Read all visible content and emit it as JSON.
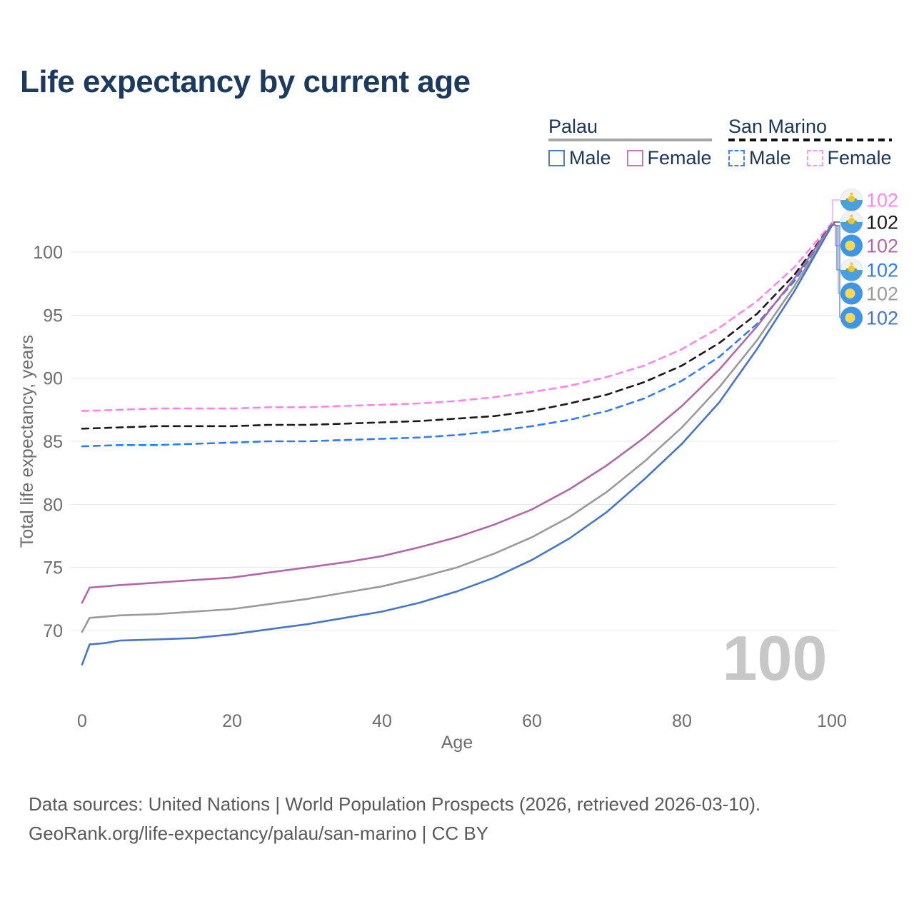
{
  "title": "Life expectancy by current age",
  "legend": {
    "groups": [
      {
        "name": "Palau",
        "line_style": "solid",
        "underline_color": "#a6a6a6",
        "items": [
          {
            "label": "Male",
            "color": "#4a7cc7",
            "dashed": false
          },
          {
            "label": "Female",
            "color": "#bd7cb5",
            "dashed": false
          }
        ]
      },
      {
        "name": "San Marino",
        "line_style": "dashed",
        "underline_color": "#111111",
        "items": [
          {
            "label": "Male",
            "color": "#3b82f6",
            "dashed": true
          },
          {
            "label": "Female",
            "color": "#fc9bec",
            "dashed": true
          }
        ]
      }
    ]
  },
  "chart_data": {
    "type": "line",
    "title": "Life expectancy by current age",
    "xlabel": "Age",
    "ylabel": "Total life expectancy, years",
    "xlim": [
      0,
      100
    ],
    "ylim": [
      70,
      100
    ],
    "x_ticks": [
      0,
      20,
      40,
      60,
      80,
      100
    ],
    "y_ticks": [
      70,
      75,
      80,
      85,
      90,
      95,
      100
    ],
    "grid": true,
    "age_indicator": "100",
    "series": [
      {
        "name": "San Marino Female",
        "country": "San Marino",
        "sex": "Female",
        "color": "#ff85e8",
        "dash": true,
        "x": [
          0,
          5,
          10,
          15,
          20,
          25,
          30,
          35,
          40,
          45,
          50,
          55,
          60,
          65,
          70,
          75,
          80,
          85,
          90,
          95,
          100
        ],
        "y": [
          87.4,
          87.5,
          87.6,
          87.6,
          87.6,
          87.7,
          87.7,
          87.8,
          87.9,
          88.0,
          88.2,
          88.5,
          88.9,
          89.4,
          90.1,
          91.0,
          92.3,
          94.0,
          96.1,
          98.8,
          102.3
        ]
      },
      {
        "name": "San Marino",
        "country": "San Marino",
        "sex": "Both",
        "color": "#1a1a1a",
        "dash": true,
        "x": [
          0,
          5,
          10,
          15,
          20,
          25,
          30,
          35,
          40,
          45,
          50,
          55,
          60,
          65,
          70,
          75,
          80,
          85,
          90,
          95,
          100
        ],
        "y": [
          86.0,
          86.1,
          86.2,
          86.2,
          86.2,
          86.3,
          86.3,
          86.4,
          86.5,
          86.6,
          86.8,
          87.0,
          87.4,
          88.0,
          88.7,
          89.7,
          91.0,
          92.8,
          95.1,
          98.2,
          102.2
        ]
      },
      {
        "name": "San Marino Male",
        "country": "San Marino",
        "sex": "Male",
        "color": "#2f7df6",
        "dash": true,
        "x": [
          0,
          5,
          10,
          15,
          20,
          25,
          30,
          35,
          40,
          45,
          50,
          55,
          60,
          65,
          70,
          75,
          80,
          85,
          90,
          95,
          100
        ],
        "y": [
          84.6,
          84.7,
          84.7,
          84.8,
          84.9,
          85.0,
          85.0,
          85.1,
          85.2,
          85.3,
          85.5,
          85.8,
          86.2,
          86.7,
          87.4,
          88.4,
          89.8,
          91.7,
          94.3,
          97.7,
          102.1
        ]
      },
      {
        "name": "Palau Female",
        "country": "Palau",
        "sex": "Female",
        "color": "#b268a8",
        "dash": false,
        "x": [
          0,
          1,
          3,
          5,
          10,
          15,
          20,
          25,
          30,
          35,
          40,
          45,
          50,
          55,
          60,
          65,
          70,
          75,
          80,
          85,
          90,
          95,
          100
        ],
        "y": [
          72.2,
          73.4,
          73.5,
          73.6,
          73.8,
          74.0,
          74.2,
          74.6,
          75.0,
          75.4,
          75.9,
          76.6,
          77.4,
          78.4,
          79.6,
          81.2,
          83.1,
          85.3,
          87.8,
          90.7,
          94.1,
          97.9,
          102.2
        ]
      },
      {
        "name": "Palau",
        "country": "Palau",
        "sex": "Both",
        "color": "#9a9a9a",
        "dash": false,
        "x": [
          0,
          1,
          3,
          5,
          10,
          15,
          20,
          25,
          30,
          35,
          40,
          45,
          50,
          55,
          60,
          65,
          70,
          75,
          80,
          85,
          90,
          95,
          100
        ],
        "y": [
          69.9,
          71.0,
          71.1,
          71.2,
          71.3,
          71.5,
          71.7,
          72.1,
          72.5,
          73.0,
          73.5,
          74.2,
          75.0,
          76.1,
          77.4,
          79.0,
          81.0,
          83.4,
          86.1,
          89.3,
          93.0,
          97.3,
          102.1
        ]
      },
      {
        "name": "Palau Male",
        "country": "Palau",
        "sex": "Male",
        "color": "#4577c6",
        "dash": false,
        "x": [
          0,
          1,
          3,
          5,
          10,
          15,
          20,
          25,
          30,
          35,
          40,
          45,
          50,
          55,
          60,
          65,
          70,
          75,
          80,
          85,
          90,
          95,
          100
        ],
        "y": [
          67.3,
          68.9,
          69.0,
          69.2,
          69.3,
          69.4,
          69.7,
          70.1,
          70.5,
          71.0,
          71.5,
          72.2,
          73.1,
          74.2,
          75.6,
          77.3,
          79.4,
          82.0,
          84.8,
          88.1,
          92.3,
          96.9,
          102.1
        ]
      }
    ],
    "end_labels": [
      {
        "value": "102",
        "series": "San Marino Female",
        "flag": "san-marino",
        "color": "#ff85e8"
      },
      {
        "value": "102",
        "series": "San Marino",
        "flag": "san-marino",
        "color": "#1a1a1a"
      },
      {
        "value": "102",
        "series": "Palau Female",
        "flag": "palau",
        "color": "#b268a8"
      },
      {
        "value": "102",
        "series": "San Marino Male",
        "flag": "san-marino",
        "color": "#2f7df6"
      },
      {
        "value": "102",
        "series": "Palau",
        "flag": "palau",
        "color": "#9a9a9a"
      },
      {
        "value": "102",
        "series": "Palau Male",
        "flag": "palau",
        "color": "#4577c6"
      }
    ],
    "legend_position": "top-right"
  },
  "footer": {
    "line1": "Data sources: United Nations | World Population Prospects (2026, retrieved 2026-03-10).",
    "line2": "GeoRank.org/life-expectancy/palau/san-marino | CC BY"
  }
}
